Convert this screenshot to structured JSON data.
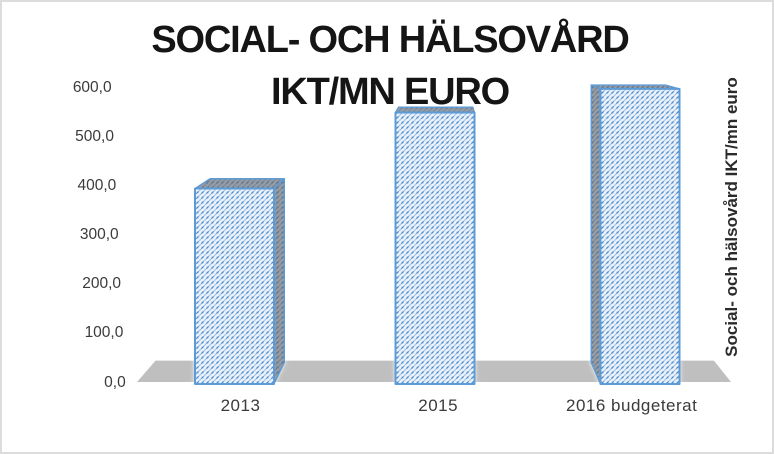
{
  "chart_data": {
    "type": "bar",
    "subtype": "3d-column",
    "title_lines": [
      "SOCIAL- OCH HÄLSOVÅRD",
      "IKT/MN EURO"
    ],
    "categories": [
      "2013",
      "2015",
      "2016 budgeterat"
    ],
    "values": [
      395,
      550,
      598
    ],
    "series_axis_title": "Social- och hälsovård IKT/mn euro",
    "y_axis": {
      "tick_labels": [
        "600,0",
        "500,0",
        "400,0",
        "300,0",
        "200,0",
        "100,0",
        "0,0"
      ],
      "tick_values": [
        600,
        500,
        400,
        300,
        200,
        100,
        0
      ],
      "min": 0,
      "max": 600,
      "number_format": "decimal-comma"
    },
    "grid": false,
    "legend": false,
    "colors": {
      "bar_border": "#5B9BD5",
      "hatch_line": "#A6C8EA",
      "hatch_line_faint": "#DFEAF7",
      "hatch_dot": "#4F8CCB",
      "bar_face_bg": "#EFF4FB",
      "side_shade": "#63686E",
      "floor": "#BFBFBF",
      "title_text": "#151515",
      "axis_text": "#3B3B3B",
      "frame_border": "#DCDCDC",
      "background": "#FFFFFF"
    }
  }
}
